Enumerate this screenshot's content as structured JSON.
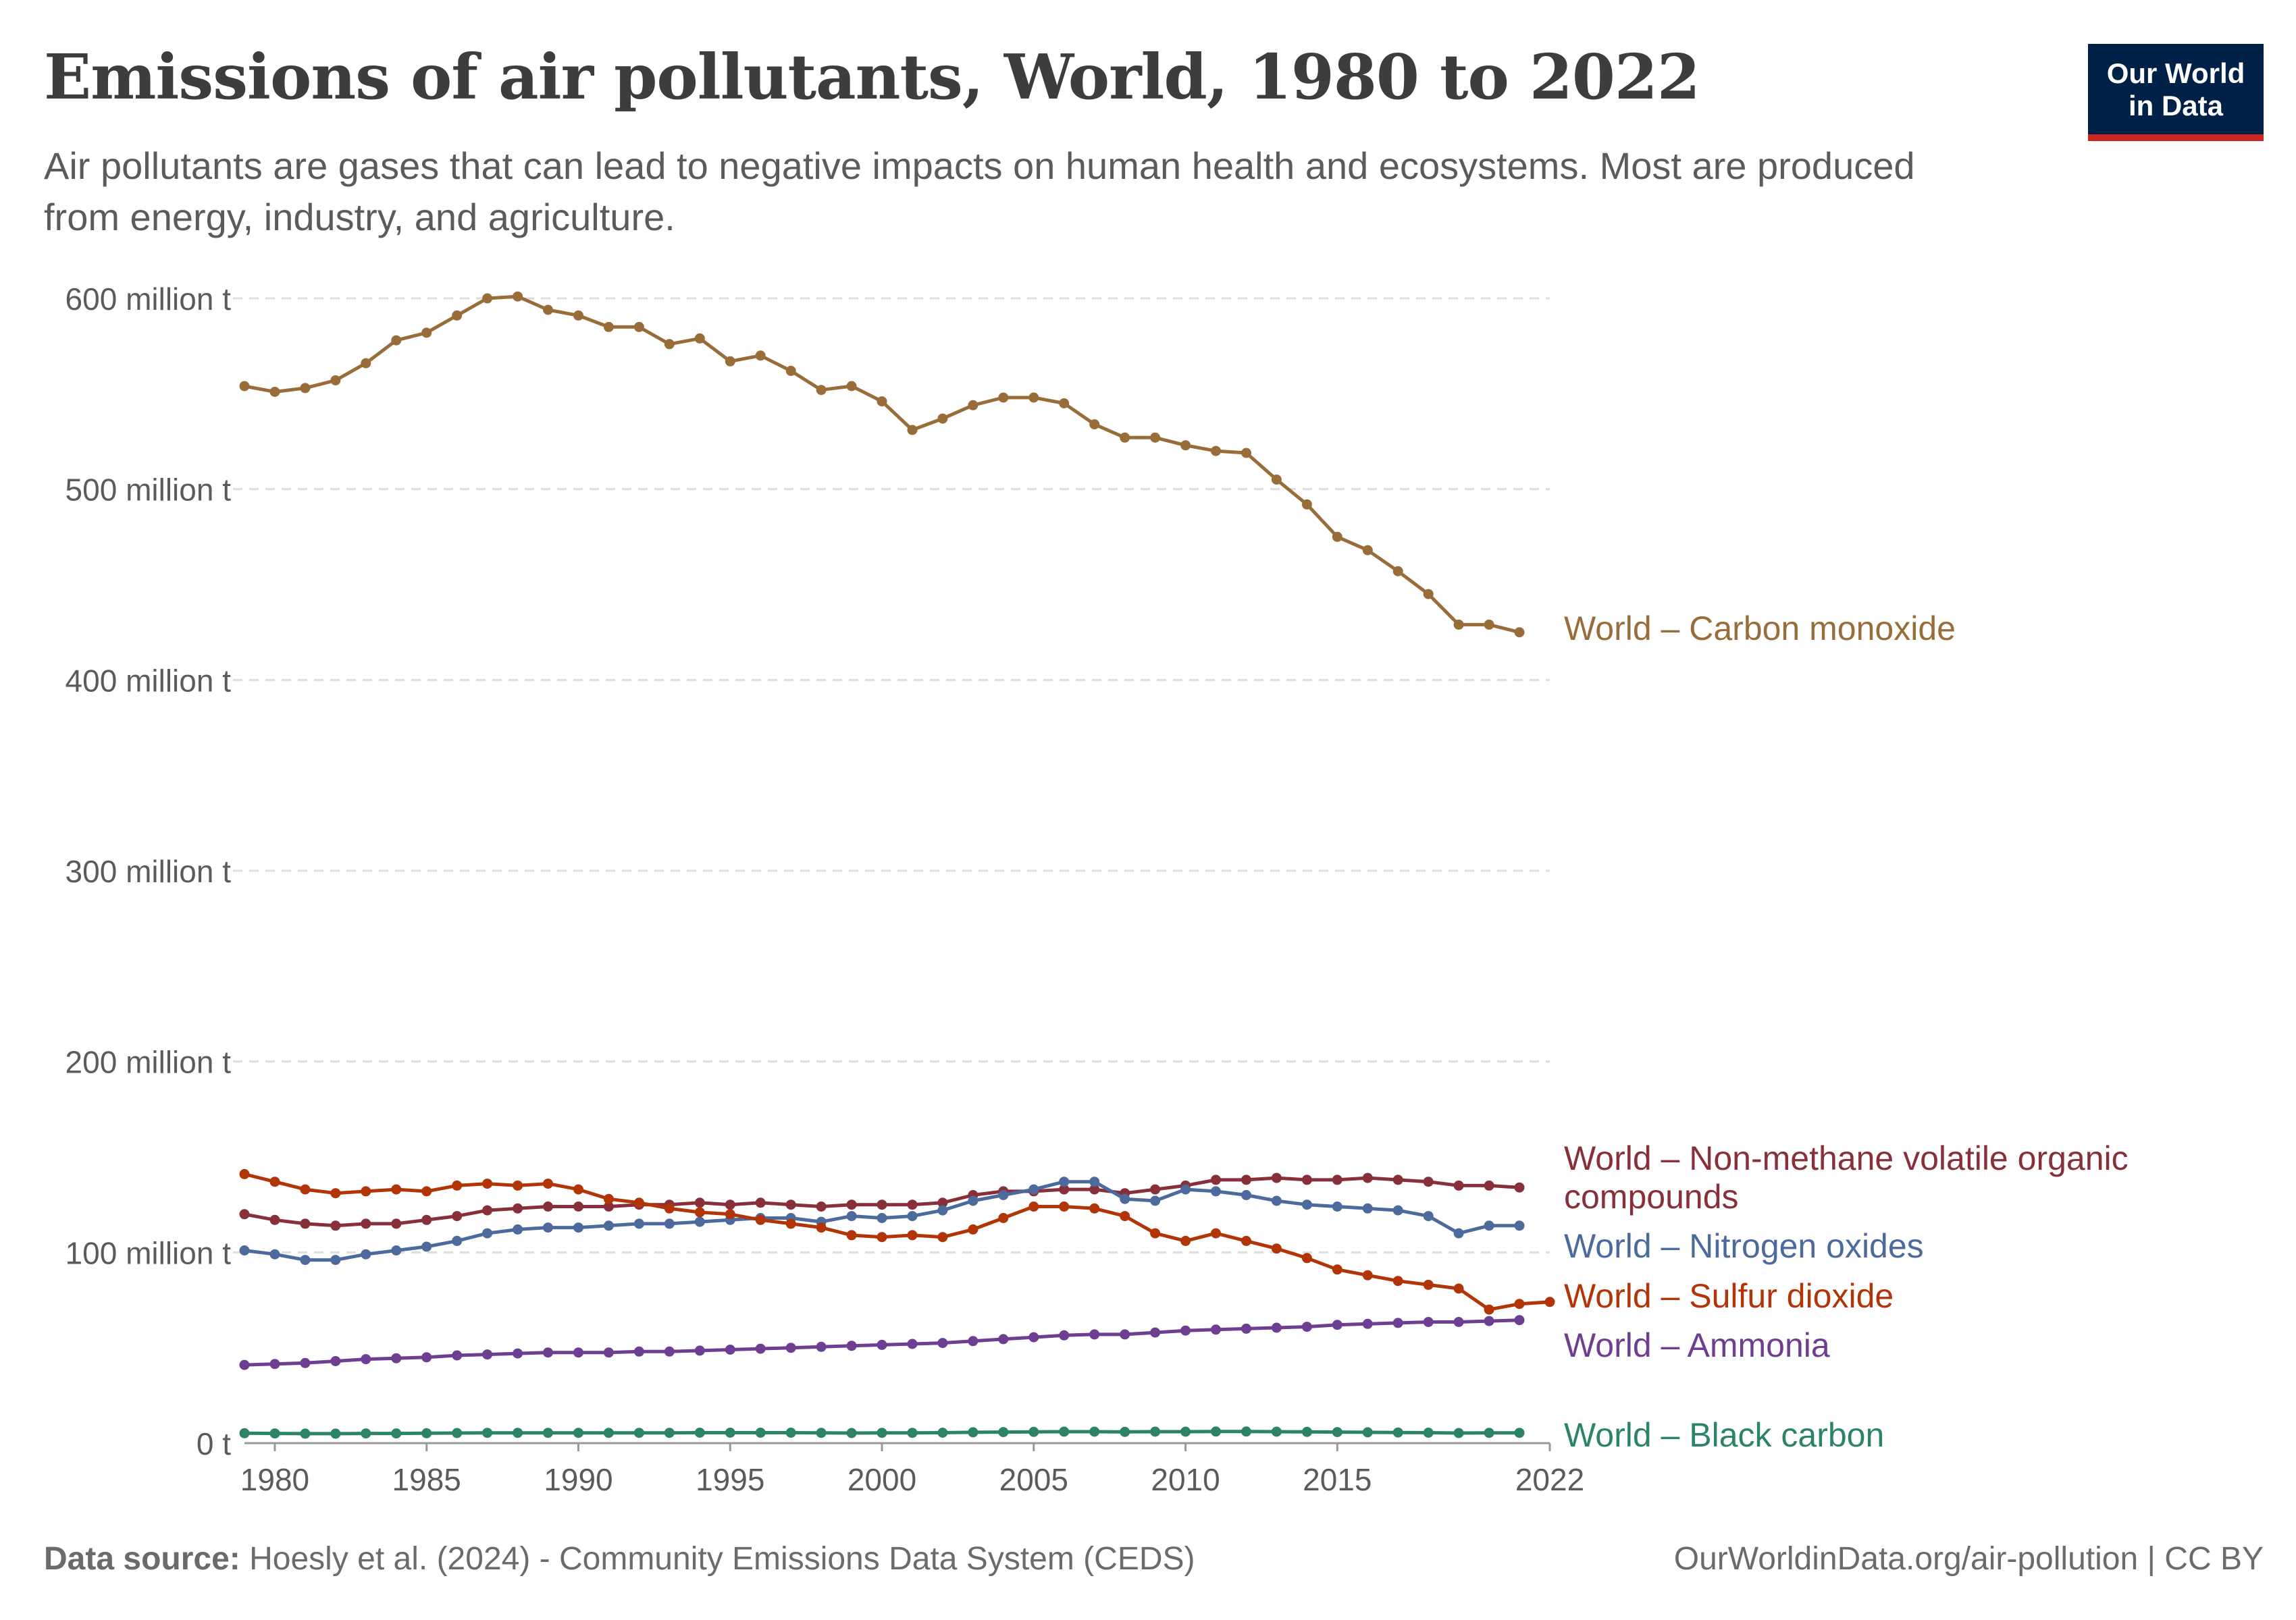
{
  "header": {
    "title": "Emissions of air pollutants, World, 1980 to 2022",
    "subtitle": "Air pollutants are gases that can lead to negative impacts on human health and ecosystems. Most are produced from energy, industry, and agriculture."
  },
  "logo": {
    "line1": "Our World",
    "line2": "in Data",
    "bg_color": "#002147",
    "accent_color": "#ce261e"
  },
  "footer": {
    "source_label": "Data source:",
    "source_text": "Hoesly et al. (2024) - Community Emissions Data System (CEDS)",
    "credit": "OurWorldinData.org/air-pollution | CC BY"
  },
  "chart_data": {
    "type": "line",
    "xlim": [
      1979,
      2022
    ],
    "ylim": [
      0,
      600
    ],
    "y_unit": "million t",
    "grid": "horizontal-dashed",
    "legend": "inline-labels-right",
    "y_ticks": [
      {
        "value": 0,
        "label": "0 t"
      },
      {
        "value": 100,
        "label": "100 million t"
      },
      {
        "value": 200,
        "label": "200 million t"
      },
      {
        "value": 300,
        "label": "300 million t"
      },
      {
        "value": 400,
        "label": "400 million t"
      },
      {
        "value": 500,
        "label": "500 million t"
      },
      {
        "value": 600,
        "label": "600 million t"
      }
    ],
    "x_ticks": [
      {
        "value": 1980,
        "label": "1980"
      },
      {
        "value": 1985,
        "label": "1985"
      },
      {
        "value": 1990,
        "label": "1990"
      },
      {
        "value": 1995,
        "label": "1995"
      },
      {
        "value": 2000,
        "label": "2000"
      },
      {
        "value": 2005,
        "label": "2005"
      },
      {
        "value": 2010,
        "label": "2010"
      },
      {
        "value": 2015,
        "label": "2015"
      },
      {
        "value": 2022,
        "label": "2022"
      }
    ],
    "x": [
      1979,
      1980,
      1981,
      1982,
      1983,
      1984,
      1985,
      1986,
      1987,
      1988,
      1989,
      1990,
      1991,
      1992,
      1993,
      1994,
      1995,
      1996,
      1997,
      1998,
      1999,
      2000,
      2001,
      2002,
      2003,
      2004,
      2005,
      2006,
      2007,
      2008,
      2009,
      2010,
      2011,
      2012,
      2013,
      2014,
      2015,
      2016,
      2017,
      2018,
      2019,
      2020,
      2021,
      2022
    ],
    "series": [
      {
        "name": "World – Carbon monoxide",
        "label_lines": [
          "World – Carbon monoxide"
        ],
        "color": "#986d39",
        "values": [
          554,
          551,
          553,
          557,
          566,
          578,
          582,
          591,
          600,
          601,
          594,
          591,
          585,
          585,
          576,
          579,
          567,
          570,
          562,
          552,
          554,
          546,
          531,
          537,
          544,
          548,
          548,
          545,
          534,
          527,
          527,
          523,
          520,
          519,
          505,
          492,
          475,
          468,
          457,
          445,
          429,
          429,
          425,
          null
        ]
      },
      {
        "name": "World – Non-methane volatile organic compounds",
        "label_lines": [
          "World – Non-methane volatile organic",
          "compounds"
        ],
        "color": "#883039",
        "values": [
          120,
          117,
          115,
          114,
          115,
          115,
          117,
          119,
          122,
          123,
          124,
          124,
          124,
          125,
          125,
          126,
          125,
          126,
          125,
          124,
          125,
          125,
          125,
          126,
          130,
          132,
          132,
          133,
          133,
          131,
          133,
          135,
          138,
          138,
          139,
          138,
          138,
          139,
          138,
          137,
          135,
          135,
          134,
          null
        ]
      },
      {
        "name": "World – Nitrogen oxides",
        "label_lines": [
          "World – Nitrogen oxides"
        ],
        "color": "#4c6a9c",
        "values": [
          101,
          99,
          96,
          96,
          99,
          101,
          103,
          106,
          110,
          112,
          113,
          113,
          114,
          115,
          115,
          116,
          117,
          118,
          118,
          116,
          119,
          118,
          119,
          122,
          127,
          130,
          133,
          137,
          137,
          128,
          127,
          133,
          132,
          130,
          127,
          125,
          124,
          123,
          122,
          119,
          110,
          114,
          114,
          null
        ]
      },
      {
        "name": "World – Sulfur dioxide",
        "label_lines": [
          "World – Sulfur dioxide"
        ],
        "color": "#b13507",
        "values": [
          141,
          137,
          133,
          131,
          132,
          133,
          132,
          135,
          136,
          135,
          136,
          133,
          128,
          126,
          123,
          121,
          120,
          117,
          115,
          113,
          109,
          108,
          109,
          108,
          112,
          118,
          124,
          124,
          123,
          119,
          110,
          106,
          110,
          106,
          102,
          97,
          91,
          88,
          85,
          83,
          81,
          70,
          73,
          74
        ]
      },
      {
        "name": "World – Ammonia",
        "label_lines": [
          "World – Ammonia"
        ],
        "color": "#6d3e91",
        "values": [
          41,
          41.5,
          42,
          43,
          44,
          44.5,
          45,
          46,
          46.5,
          47,
          47.5,
          47.5,
          47.5,
          48,
          48,
          48.5,
          49,
          49.5,
          50,
          50.5,
          51,
          51.5,
          52,
          52.5,
          53.5,
          54.5,
          55.5,
          56.5,
          57,
          57,
          58,
          59,
          59.5,
          60,
          60.5,
          61,
          62,
          62.5,
          63,
          63.5,
          63.5,
          64,
          64.5,
          null
        ]
      },
      {
        "name": "World – Black carbon",
        "label_lines": [
          "World – Black carbon"
        ],
        "color": "#2c8465",
        "values": [
          5.2,
          5.1,
          5.0,
          5.0,
          5.1,
          5.1,
          5.2,
          5.3,
          5.4,
          5.4,
          5.4,
          5.4,
          5.4,
          5.4,
          5.4,
          5.5,
          5.5,
          5.5,
          5.5,
          5.4,
          5.3,
          5.4,
          5.4,
          5.5,
          5.7,
          5.8,
          5.9,
          6.0,
          6.0,
          5.9,
          6.0,
          6.0,
          6.1,
          6.1,
          6.0,
          5.9,
          5.8,
          5.7,
          5.6,
          5.5,
          5.3,
          5.4,
          5.4,
          null
        ]
      }
    ]
  }
}
